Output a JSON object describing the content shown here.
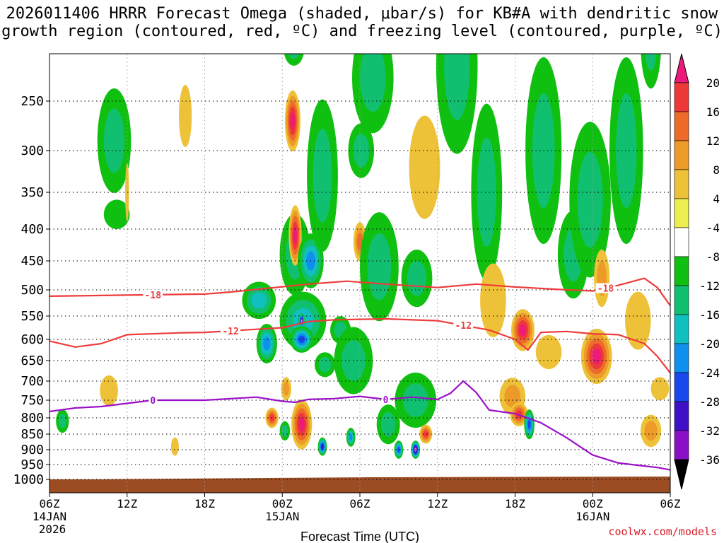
{
  "title_line1": "2026011406 HRRR Forecast Omega (shaded, μbar/s) for KB#A with dendritic snow",
  "title_line2": "growth region (contoured, red, ºC) and freezing level (contoured, purple, ºC)",
  "credit": "coolwx.com/models",
  "colors": {
    "red_contour": "#ee3b3b",
    "purple_contour": "#9a10c8",
    "terrain": "#9c4c22"
  },
  "chart_data": {
    "type": "heatmap",
    "title": "2026011406 HRRR Forecast Omega (shaded, μbar/s) for KB#A with dendritic snow growth region (contoured, red, ºC) and freezing level (contoured, purple, ºC)",
    "xlabel": "Forecast Time (UTC)",
    "ylabel": "",
    "x_range_hours": [
      0,
      48
    ],
    "y_range_hpa": [
      1000,
      200
    ],
    "x_ticks": [
      {
        "hour": 0,
        "label": "06Z",
        "date": "14JAN",
        "year": "2026"
      },
      {
        "hour": 6,
        "label": "12Z"
      },
      {
        "hour": 12,
        "label": "18Z"
      },
      {
        "hour": 18,
        "label": "00Z",
        "date": "15JAN"
      },
      {
        "hour": 24,
        "label": "06Z"
      },
      {
        "hour": 30,
        "label": "12Z"
      },
      {
        "hour": 36,
        "label": "18Z"
      },
      {
        "hour": 42,
        "label": "00Z",
        "date": "16JAN"
      },
      {
        "hour": 48,
        "label": "06Z"
      }
    ],
    "y_ticks": [
      250,
      300,
      350,
      400,
      450,
      500,
      550,
      600,
      650,
      700,
      750,
      800,
      850,
      900,
      950,
      1000
    ],
    "colorbar": {
      "labels": [
        "20",
        "16",
        "12",
        "8",
        "4",
        "-4",
        "-8",
        "-12",
        "-16",
        "-20",
        "-24",
        "-28",
        "-32",
        "-36"
      ],
      "colors": [
        "#ee1a7a",
        "#ee3838",
        "#ee6a28",
        "#ee9a28",
        "#eec238",
        "#eeee50",
        "#ffffff",
        "#10c010",
        "#10c070",
        "#10c0c0",
        "#1090ee",
        "#1848ee",
        "#4010c8",
        "#8a10c8",
        "#b0b0b0",
        "#000000"
      ]
    },
    "omega_features": [
      {
        "hour": 1.0,
        "hpa": 810,
        "dh": 0.5,
        "dp": 70,
        "value": -9
      },
      {
        "hour": 5.0,
        "hpa": 290,
        "dh": 1.3,
        "dp": 110,
        "value": -9
      },
      {
        "hour": 5.2,
        "hpa": 380,
        "dh": 1.0,
        "dp": 40,
        "value": -8
      },
      {
        "hour": 6.0,
        "hpa": 350,
        "dh": 0.15,
        "dp": 75,
        "value": 6
      },
      {
        "hour": 4.6,
        "hpa": 725,
        "dh": 0.7,
        "dp": 80,
        "value": 7
      },
      {
        "hour": 10.5,
        "hpa": 265,
        "dh": 0.5,
        "dp": 60,
        "value": 6
      },
      {
        "hour": 9.7,
        "hpa": 890,
        "dh": 0.3,
        "dp": 60,
        "value": 5
      },
      {
        "hour": 16.2,
        "hpa": 520,
        "dh": 1.3,
        "dp": 70,
        "value": -13
      },
      {
        "hour": 16.8,
        "hpa": 610,
        "dh": 0.8,
        "dp": 90,
        "value": -20
      },
      {
        "hour": 17.2,
        "hpa": 800,
        "dh": 0.5,
        "dp": 60,
        "value": 18
      },
      {
        "hour": 18.3,
        "hpa": 720,
        "dh": 0.4,
        "dp": 60,
        "value": 10
      },
      {
        "hour": 19.0,
        "hpa": 440,
        "dh": 1.2,
        "dp": 130,
        "value": -10
      },
      {
        "hour": 19.0,
        "hpa": 410,
        "dh": 0.5,
        "dp": 90,
        "value": 20
      },
      {
        "hour": 18.8,
        "hpa": 270,
        "dh": 0.6,
        "dp": 60,
        "value": 20
      },
      {
        "hour": 18.9,
        "hpa": 205,
        "dh": 0.8,
        "dp": 30,
        "value": -9
      },
      {
        "hour": 19.6,
        "hpa": 560,
        "dh": 1.8,
        "dp": 120,
        "value": -16
      },
      {
        "hour": 19.5,
        "hpa": 600,
        "dh": 0.9,
        "dp": 60,
        "value": -24
      },
      {
        "hour": 19.5,
        "hpa": 560,
        "dh": 0.25,
        "dp": 30,
        "value": -34
      },
      {
        "hour": 20.2,
        "hpa": 450,
        "dh": 1.0,
        "dp": 90,
        "value": -20
      },
      {
        "hour": 18.2,
        "hpa": 840,
        "dh": 0.4,
        "dp": 60,
        "value": -9
      },
      {
        "hour": 19.5,
        "hpa": 820,
        "dh": 0.8,
        "dp": 150,
        "value": 20
      },
      {
        "hour": 21.3,
        "hpa": 660,
        "dh": 0.8,
        "dp": 60,
        "value": -12
      },
      {
        "hour": 21.1,
        "hpa": 330,
        "dh": 1.2,
        "dp": 180,
        "value": -9
      },
      {
        "hour": 21.1,
        "hpa": 890,
        "dh": 0.35,
        "dp": 60,
        "value": -26
      },
      {
        "hour": 22.5,
        "hpa": 580,
        "dh": 0.8,
        "dp": 60,
        "value": -10
      },
      {
        "hour": 24.0,
        "hpa": 420,
        "dh": 0.5,
        "dp": 60,
        "value": 12
      },
      {
        "hour": 24.1,
        "hpa": 300,
        "dh": 1.0,
        "dp": 60,
        "value": -9
      },
      {
        "hour": 23.3,
        "hpa": 860,
        "dh": 0.35,
        "dp": 60,
        "value": -20
      },
      {
        "hour": 23.5,
        "hpa": 650,
        "dh": 1.5,
        "dp": 160,
        "value": -10
      },
      {
        "hour": 25.0,
        "hpa": 230,
        "dh": 1.6,
        "dp": 100,
        "value": -9
      },
      {
        "hour": 25.5,
        "hpa": 460,
        "dh": 1.5,
        "dp": 180,
        "value": -11
      },
      {
        "hour": 26.2,
        "hpa": 820,
        "dh": 0.9,
        "dp": 120,
        "value": -12
      },
      {
        "hour": 27.0,
        "hpa": 900,
        "dh": 0.35,
        "dp": 60,
        "value": -24
      },
      {
        "hour": 28.3,
        "hpa": 750,
        "dh": 1.6,
        "dp": 150,
        "value": -11
      },
      {
        "hour": 28.3,
        "hpa": 900,
        "dh": 0.35,
        "dp": 60,
        "value": -34
      },
      {
        "hour": 28.4,
        "hpa": 480,
        "dh": 1.2,
        "dp": 100,
        "value": -9
      },
      {
        "hour": 29.1,
        "hpa": 850,
        "dh": 0.5,
        "dp": 60,
        "value": 18
      },
      {
        "hour": 29.0,
        "hpa": 320,
        "dh": 1.2,
        "dp": 120,
        "value": 6
      },
      {
        "hour": 31.5,
        "hpa": 220,
        "dh": 1.6,
        "dp": 160,
        "value": -9
      },
      {
        "hour": 33.8,
        "hpa": 350,
        "dh": 1.2,
        "dp": 220,
        "value": -9
      },
      {
        "hour": 34.3,
        "hpa": 520,
        "dh": 1.0,
        "dp": 140,
        "value": 6
      },
      {
        "hour": 35.8,
        "hpa": 740,
        "dh": 1.0,
        "dp": 100,
        "value": 8
      },
      {
        "hour": 36.6,
        "hpa": 580,
        "dh": 0.9,
        "dp": 90,
        "value": 20
      },
      {
        "hour": 36.3,
        "hpa": 790,
        "dh": 0.7,
        "dp": 70,
        "value": 16
      },
      {
        "hour": 37.1,
        "hpa": 820,
        "dh": 0.4,
        "dp": 90,
        "value": -24
      },
      {
        "hour": 38.6,
        "hpa": 630,
        "dh": 1.0,
        "dp": 80,
        "value": 6
      },
      {
        "hour": 38.2,
        "hpa": 300,
        "dh": 1.4,
        "dp": 200,
        "value": -9
      },
      {
        "hour": 40.5,
        "hpa": 440,
        "dh": 1.2,
        "dp": 140,
        "value": -12
      },
      {
        "hour": 41.8,
        "hpa": 360,
        "dh": 1.6,
        "dp": 200,
        "value": -9
      },
      {
        "hour": 42.3,
        "hpa": 640,
        "dh": 1.2,
        "dp": 130,
        "value": 20
      },
      {
        "hour": 42.7,
        "hpa": 480,
        "dh": 0.6,
        "dp": 100,
        "value": 10
      },
      {
        "hour": 44.6,
        "hpa": 300,
        "dh": 1.3,
        "dp": 200,
        "value": -9
      },
      {
        "hour": 46.5,
        "hpa": 200,
        "dh": 0.8,
        "dp": 80,
        "value": -9
      },
      {
        "hour": 45.5,
        "hpa": 560,
        "dh": 1.0,
        "dp": 120,
        "value": 6
      },
      {
        "hour": 46.5,
        "hpa": 840,
        "dh": 0.8,
        "dp": 100,
        "value": 10
      },
      {
        "hour": 47.2,
        "hpa": 720,
        "dh": 0.7,
        "dp": 60,
        "value": 6
      }
    ],
    "contours": [
      {
        "name": "dgz-minus18",
        "label": "-18",
        "color": "#ee3b3b",
        "label_at": [
          8,
          43
        ],
        "points": [
          [
            0,
            512
          ],
          [
            6,
            510
          ],
          [
            12,
            508
          ],
          [
            14,
            504
          ],
          [
            17,
            497
          ],
          [
            20,
            490
          ],
          [
            23,
            485
          ],
          [
            26,
            490
          ],
          [
            30,
            496
          ],
          [
            33,
            490
          ],
          [
            36,
            495
          ],
          [
            40,
            500
          ],
          [
            42,
            502
          ],
          [
            44,
            492
          ],
          [
            46,
            480
          ],
          [
            47,
            496
          ],
          [
            48,
            530
          ]
        ]
      },
      {
        "name": "dgz-minus12",
        "label": "-12",
        "color": "#ee3b3b",
        "label_at": [
          14,
          32
        ],
        "points": [
          [
            0,
            604
          ],
          [
            2,
            618
          ],
          [
            4,
            610
          ],
          [
            6,
            590
          ],
          [
            10,
            586
          ],
          [
            12,
            585
          ],
          [
            15,
            580
          ],
          [
            18,
            575
          ],
          [
            20,
            562
          ],
          [
            22,
            558
          ],
          [
            26,
            556
          ],
          [
            30,
            560
          ],
          [
            34,
            580
          ],
          [
            36,
            600
          ],
          [
            37,
            625
          ],
          [
            38,
            585
          ],
          [
            40,
            583
          ],
          [
            42,
            588
          ],
          [
            44,
            590
          ],
          [
            46,
            610
          ],
          [
            47,
            640
          ],
          [
            48,
            680
          ]
        ]
      },
      {
        "name": "freezing-level",
        "label": "0",
        "color": "#9a10c8",
        "label_at": [
          8,
          26
        ],
        "points": [
          [
            0,
            782
          ],
          [
            2,
            772
          ],
          [
            4,
            768
          ],
          [
            8,
            750
          ],
          [
            12,
            750
          ],
          [
            16,
            742
          ],
          [
            18,
            753
          ],
          [
            19,
            756
          ],
          [
            20,
            748
          ],
          [
            22,
            746
          ],
          [
            24,
            740
          ],
          [
            26,
            748
          ],
          [
            28,
            742
          ],
          [
            30,
            748
          ],
          [
            31,
            732
          ],
          [
            32,
            700
          ],
          [
            33,
            730
          ],
          [
            34,
            778
          ],
          [
            36,
            788
          ],
          [
            38,
            815
          ],
          [
            40,
            862
          ],
          [
            42,
            918
          ],
          [
            44,
            945
          ],
          [
            46,
            955
          ],
          [
            47,
            960
          ],
          [
            48,
            968
          ]
        ]
      }
    ]
  }
}
